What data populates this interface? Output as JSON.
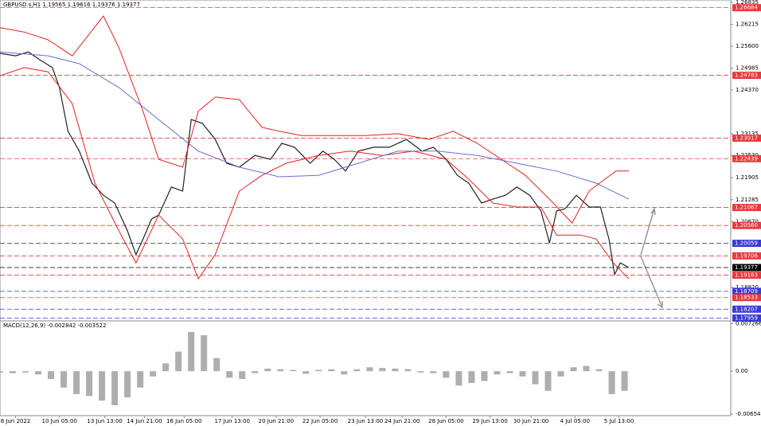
{
  "chart_data": [
    {
      "type": "line",
      "title": "GBPUSD.s,H1  1.19565 1.19616 1.19376 1.19377",
      "xlim": [
        0,
        516
      ],
      "ylim": [
        1.179,
        1.269
      ],
      "xticks": [
        {
          "value": 11,
          "label": "8 Jun 2022"
        },
        {
          "value": 42,
          "label": "10 Jun 05:00"
        },
        {
          "value": 74,
          "label": "13 Jun 13:00"
        },
        {
          "value": 102,
          "label": "14 Jun 21:00"
        },
        {
          "value": 130,
          "label": "16 Jun 05:00"
        },
        {
          "value": 164,
          "label": "17 Jun 13:00"
        },
        {
          "value": 195,
          "label": "20 Jun 21:00"
        },
        {
          "value": 226,
          "label": "22 Jun 05:00"
        },
        {
          "value": 258,
          "label": "23 Jun 13:00"
        },
        {
          "value": 284,
          "label": "24 Jun 21:00"
        },
        {
          "value": 315,
          "label": "28 Jun 05:00"
        },
        {
          "value": 346,
          "label": "29 Jun 13:00"
        },
        {
          "value": 375,
          "label": "30 Jun 21:00"
        },
        {
          "value": 406,
          "label": "4 Jul 05:00"
        },
        {
          "value": 437,
          "label": "5 Jul 13:00"
        }
      ],
      "yticks": [
        1.26835,
        1.26215,
        {
          "value": 1.256,
          "label": "1.25600"
        },
        1.24985,
        {
          "value": 1.2437,
          "label": "1.24370"
        },
        1.23135,
        {
          "value": 1.2253,
          "label": "1.22530"
        },
        1.21905,
        1.21285,
        {
          "value": 1.2067,
          "label": "1.20670"
        },
        {
          "value": 1.1882,
          "label": "1.18820"
        }
      ],
      "levels": [
        {
          "value": 1.26684,
          "color": "#e8393c"
        },
        {
          "value": 1.24783,
          "color": "#e8393c"
        },
        {
          "value": 1.23017,
          "color": "#e8393c"
        },
        {
          "value": 1.22439,
          "color": "#e8393c"
        },
        {
          "value": 1.21067,
          "color": "#e8393c"
        },
        {
          "value": 1.2056,
          "label": "1.20560",
          "color": "#e8393c"
        },
        {
          "value": 1.20059,
          "color": "#3a3ad8"
        },
        {
          "value": 1.19706,
          "color": "#e8393c"
        },
        {
          "value": 1.19377,
          "color": "#000000"
        },
        {
          "value": 1.19163,
          "color": "#e8393c"
        },
        {
          "value": 1.18709,
          "color": "#3a3ad8"
        },
        {
          "value": 1.18533,
          "color": "#e8393c"
        },
        {
          "value": 1.18207,
          "color": "#3a3ad8"
        },
        {
          "value": 1.17959,
          "color": "#3a3ad8"
        }
      ],
      "series": [
        {
          "color": "#222222",
          "x": [
            0,
            11,
            20,
            28,
            37,
            42,
            48,
            56,
            65,
            73,
            81,
            90,
            96,
            101,
            107,
            112,
            121,
            129,
            135,
            143,
            152,
            160,
            169,
            180,
            191,
            199,
            208,
            219,
            228,
            236,
            244,
            253,
            264,
            275,
            287,
            298,
            306,
            315,
            323,
            331,
            340,
            348,
            357,
            365,
            374,
            382,
            388,
            393,
            399,
            407,
            416,
            424,
            430,
            434,
            438,
            444
          ],
          "values": [
            1.254,
            1.2533,
            1.2544,
            1.2522,
            1.25,
            1.2444,
            1.2321,
            1.2265,
            1.2175,
            1.2141,
            1.2119,
            1.2041,
            1.1974,
            1.2018,
            1.2074,
            1.2085,
            1.2164,
            1.2153,
            1.2354,
            1.2343,
            1.2298,
            1.2231,
            1.222,
            1.2253,
            1.2242,
            1.2287,
            1.2276,
            1.2231,
            1.2265,
            1.2242,
            1.2209,
            1.2265,
            1.2276,
            1.2276,
            1.2298,
            1.2265,
            1.2276,
            1.2242,
            1.2197,
            1.2175,
            1.2119,
            1.213,
            1.2141,
            1.2164,
            1.2141,
            1.2097,
            1.2007,
            1.2097,
            1.2103,
            1.2141,
            1.2108,
            1.2108,
            1.2018,
            1.1918,
            1.1951,
            1.19377
          ]
        },
        {
          "color": "#e8201e",
          "x": [
            0,
            17,
            34,
            51,
            73,
            84,
            101,
            112,
            129,
            140,
            152,
            169,
            185,
            197,
            213,
            236,
            258,
            281,
            303,
            320,
            337,
            354,
            371,
            388,
            404,
            416,
            427,
            435,
            444
          ],
          "values": [
            1.2612,
            1.26,
            1.2578,
            1.2533,
            1.2645,
            1.2556,
            1.2377,
            1.2242,
            1.222,
            1.2377,
            1.2417,
            1.241,
            1.2332,
            1.2321,
            1.2309,
            1.2309,
            1.2309,
            1.2314,
            1.2298,
            1.2321,
            1.2287,
            1.2242,
            1.2197,
            1.213,
            1.2063,
            1.2153,
            1.2186,
            1.2209,
            1.2209
          ]
        },
        {
          "color": "#e8201e",
          "x": [
            0,
            17,
            34,
            51,
            67,
            84,
            96,
            112,
            129,
            140,
            152,
            169,
            185,
            202,
            225,
            247,
            270,
            292,
            315,
            331,
            348,
            365,
            382,
            393,
            410,
            421,
            433,
            444
          ],
          "values": [
            1.2477,
            1.25,
            1.2488,
            1.2399,
            1.2175,
            1.2041,
            1.1951,
            1.2085,
            1.2018,
            1.1906,
            1.1974,
            1.2153,
            1.2197,
            1.2231,
            1.2253,
            1.2265,
            1.2253,
            1.2265,
            1.2242,
            1.2186,
            1.2119,
            1.2108,
            1.2108,
            1.2029,
            1.2029,
            1.2018,
            1.1951,
            1.1906
          ]
        },
        {
          "color": "#6c6cd0",
          "x": [
            0,
            34,
            56,
            84,
            112,
            140,
            169,
            197,
            225,
            253,
            281,
            309,
            337,
            365,
            393,
            421,
            444
          ],
          "values": [
            1.2544,
            1.2533,
            1.2511,
            1.2444,
            1.2354,
            1.2265,
            1.222,
            1.2193,
            1.2197,
            1.2231,
            1.2265,
            1.2265,
            1.2253,
            1.2231,
            1.2209,
            1.2175,
            1.213
          ]
        }
      ]
    },
    {
      "type": "bar",
      "title": "MACD(12,26,9) -0.002842 -0.003522",
      "color": "#8c8c8c",
      "xlim": [
        0,
        516
      ],
      "ylim": [
        -0.0068,
        0.00745
      ],
      "yticks": [
        0.007266,
        {
          "value": 0,
          "label": "0.00"
        },
        -0.006547
      ],
      "x": [
        0,
        9,
        18,
        27,
        36,
        45,
        54,
        63,
        72,
        81,
        90,
        99,
        108,
        117,
        126,
        135,
        144,
        153,
        162,
        171,
        180,
        189,
        198,
        207,
        216,
        225,
        234,
        243,
        252,
        261,
        270,
        279,
        288,
        297,
        306,
        315,
        324,
        333,
        342,
        351,
        360,
        369,
        378,
        387,
        396,
        405,
        414,
        423,
        432,
        441
      ],
      "values": [
        -0.0002,
        -0.0003,
        -0.0002,
        -0.0005,
        -0.0012,
        -0.0025,
        -0.0035,
        -0.0038,
        -0.0045,
        -0.0052,
        -0.004,
        -0.0025,
        -0.0008,
        0.0012,
        0.003,
        0.006,
        0.0055,
        0.002,
        -0.001,
        -0.0012,
        -0.0003,
        0.0004,
        0.0003,
        0.0002,
        -0.0004,
        0.0002,
        0.0003,
        -0.0005,
        0.0003,
        0.0006,
        0.0005,
        0.0004,
        0.0003,
        -0.0002,
        -0.0003,
        -0.001,
        -0.0022,
        -0.0018,
        -0.0015,
        -0.0005,
        -0.0003,
        -0.0008,
        -0.002,
        -0.003,
        -0.0008,
        0.0006,
        0.0008,
        0.0003,
        -0.0035,
        -0.003
      ]
    }
  ]
}
